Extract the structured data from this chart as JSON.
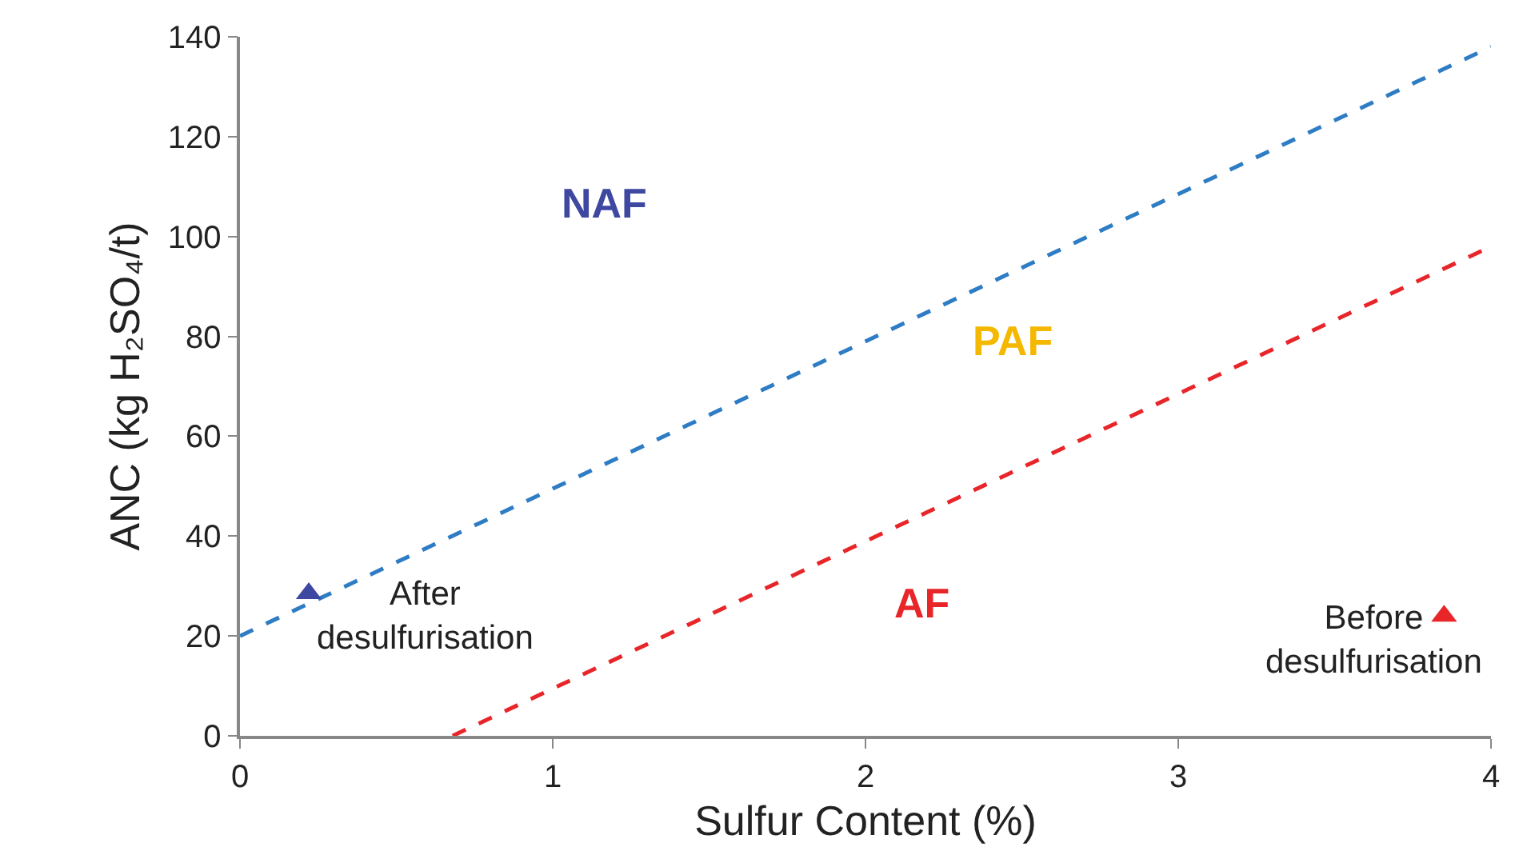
{
  "chart_data": {
    "type": "line",
    "xlabel": "Sulfur Content (%)",
    "ylabel": "ANC (kg H₂SO₄/t)",
    "xlim": [
      0,
      4
    ],
    "xticks": [
      0,
      1,
      2,
      3,
      4
    ],
    "ylim": [
      0,
      140
    ],
    "yticks": [
      0,
      20,
      40,
      60,
      80,
      100,
      120,
      140
    ],
    "series": [
      {
        "line_style": "dashed",
        "marker": "none",
        "color": "#2e7dc4",
        "x": [
          0,
          4.0
        ],
        "values": [
          20,
          138
        ]
      },
      {
        "line_style": "dashed",
        "marker": "none",
        "color": "#e8262a",
        "x": [
          0.68,
          4.0
        ],
        "values": [
          0,
          98
        ]
      },
      {
        "type": "scatter",
        "marker": "triangle",
        "color": "#3f48a0",
        "x": [
          0.22
        ],
        "values": [
          28.5
        ]
      },
      {
        "type": "scatter",
        "marker": "triangle",
        "color": "#e8262a",
        "x": [
          3.85
        ],
        "values": [
          24
        ]
      }
    ],
    "annotations": [
      "NAF",
      "PAF",
      "AF",
      {
        "text": "After\ndesulfurisation",
        "x": 0.22,
        "y": 28.5
      },
      {
        "text": "Before\ndesulfurisation",
        "x": 3.85,
        "y": 24
      }
    ]
  }
}
